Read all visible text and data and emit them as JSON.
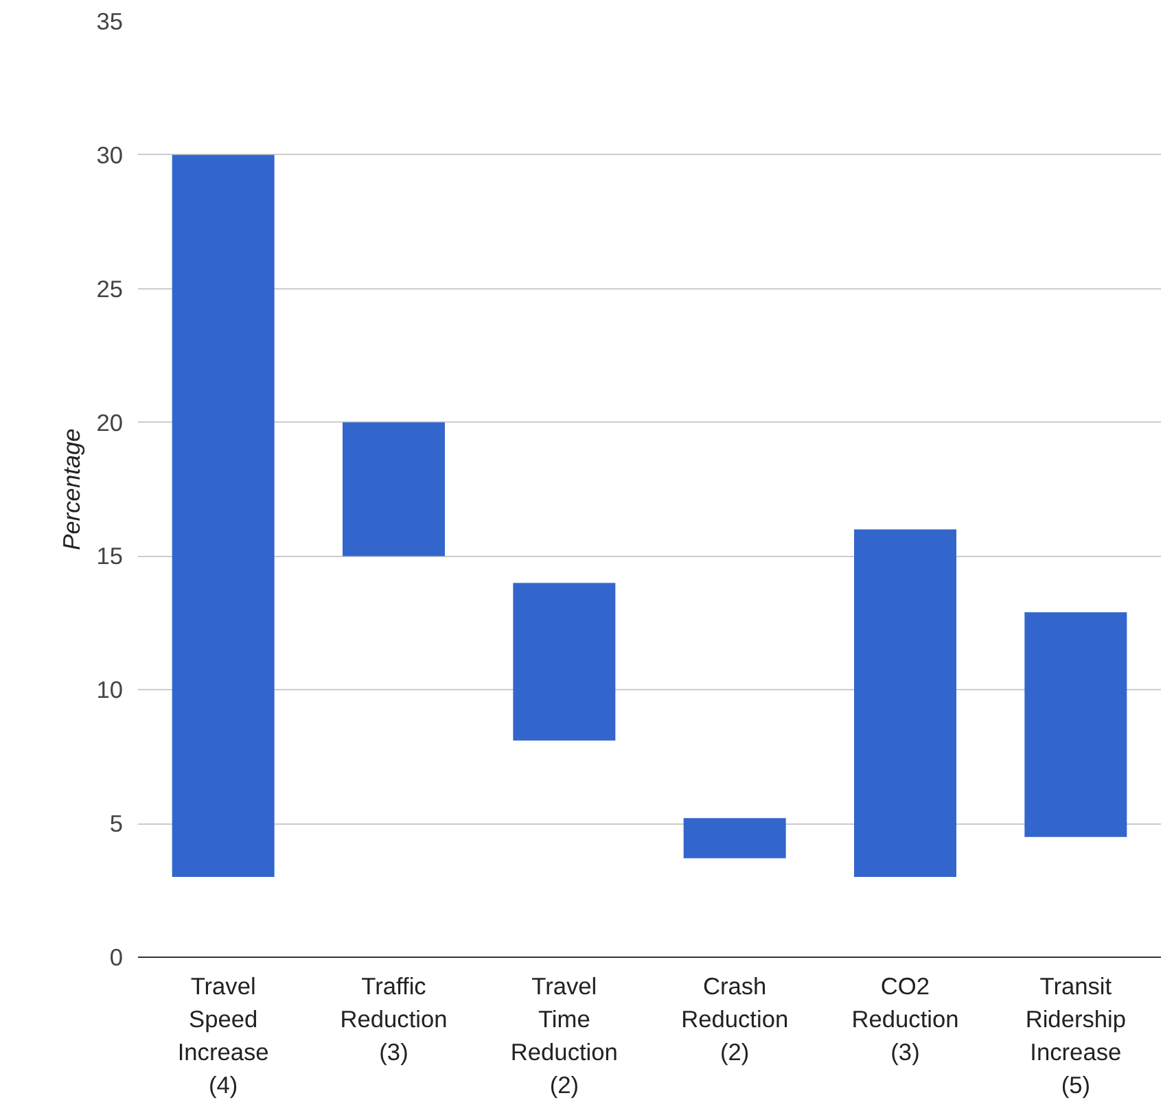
{
  "chart_data": {
    "type": "bar",
    "ylabel": "Percentage",
    "categories": [
      "Travel\nSpeed\nIncrease\n(4)",
      "Traffic\nReduction\n(3)",
      "Travel\nTime\nReduction\n(2)",
      "Crash\nReduction\n(2)",
      "CO2\nReduction\n(3)",
      "Transit\nRidership\nIncrease\n(5)"
    ],
    "base": [
      3,
      15,
      8.1,
      3.7,
      3,
      4.5
    ],
    "values": [
      27,
      5,
      5.9,
      1.5,
      13,
      8.4
    ],
    "color": "#3366cc",
    "ylim": [
      0,
      35
    ],
    "yticks": [
      0,
      5,
      10,
      15,
      20,
      25,
      30,
      35
    ],
    "grid": "y"
  }
}
